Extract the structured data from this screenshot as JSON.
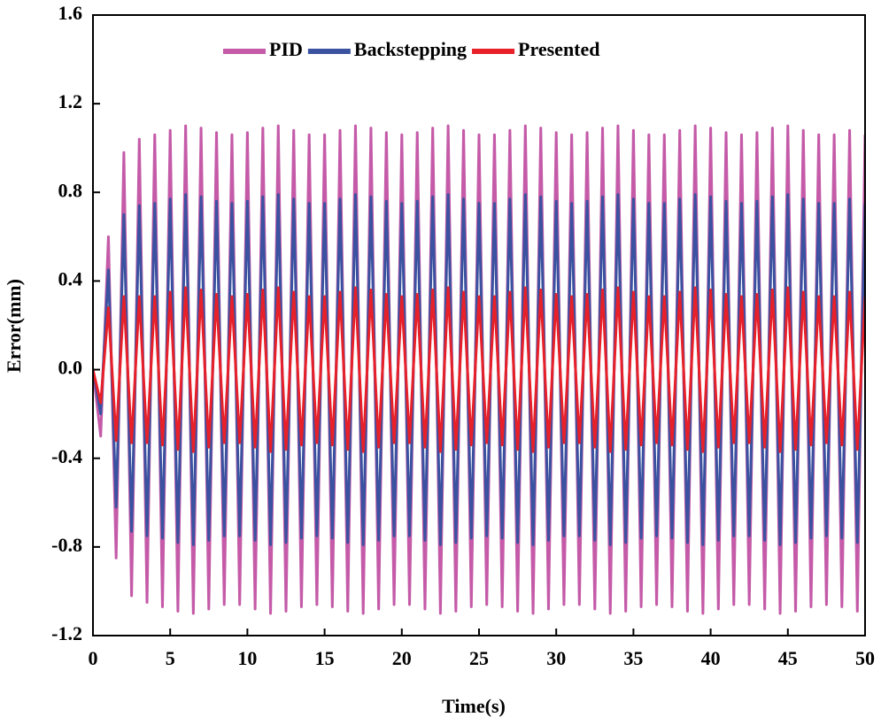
{
  "chart_data": {
    "type": "line",
    "xlabel": "Time(s)",
    "ylabel": "Error(mm)",
    "xlim": [
      0,
      50
    ],
    "ylim": [
      -1.2,
      1.6
    ],
    "xticks": [
      0,
      5,
      10,
      15,
      20,
      25,
      30,
      35,
      40,
      45,
      50
    ],
    "yticks": [
      -1.2,
      -0.8,
      -0.4,
      {
        "value": 0,
        "label": "0.0"
      },
      0.4,
      0.8,
      1.2,
      1.6
    ],
    "legend": "top",
    "x": [
      0,
      0.5,
      1,
      1.5,
      2,
      2.5,
      3,
      3.5,
      4,
      4.5,
      5,
      5.5,
      6,
      6.5,
      7,
      7.5,
      8,
      8.5,
      9,
      9.5,
      10,
      10.5,
      11,
      11.5,
      12,
      12.5,
      13,
      13.5,
      14,
      14.5,
      15,
      15.5,
      16,
      16.5,
      17,
      17.5,
      18,
      18.5,
      19,
      19.5,
      20,
      20.5,
      21,
      21.5,
      22,
      22.5,
      23,
      23.5,
      24,
      24.5,
      25,
      25.5,
      26,
      26.5,
      27,
      27.5,
      28,
      28.5,
      29,
      29.5,
      30,
      30.5,
      31,
      31.5,
      32,
      32.5,
      33,
      33.5,
      34,
      34.5,
      35,
      35.5,
      36,
      36.5,
      37,
      37.5,
      38,
      38.5,
      39,
      39.5,
      40,
      40.5,
      41,
      41.5,
      42,
      42.5,
      43,
      43.5,
      44,
      44.5,
      45,
      45.5,
      46,
      46.5,
      47,
      47.5,
      48,
      48.5,
      49,
      49.5,
      50
    ],
    "series": [
      {
        "name": "PID",
        "color": "#c45aa8",
        "values": [
          0,
          -0.3,
          0.6,
          -0.85,
          0.98,
          -1.02,
          1.04,
          -1.05,
          1.06,
          -1.07,
          1.08,
          -1.09,
          1.1,
          -1.1,
          1.09,
          -1.08,
          1.07,
          -1.06,
          1.06,
          -1.06,
          1.07,
          -1.08,
          1.09,
          -1.1,
          1.1,
          -1.09,
          1.08,
          -1.07,
          1.06,
          -1.06,
          1.06,
          -1.07,
          1.08,
          -1.09,
          1.1,
          -1.1,
          1.09,
          -1.08,
          1.07,
          -1.06,
          1.06,
          -1.06,
          1.07,
          -1.08,
          1.09,
          -1.1,
          1.1,
          -1.09,
          1.08,
          -1.07,
          1.06,
          -1.06,
          1.06,
          -1.07,
          1.08,
          -1.09,
          1.1,
          -1.1,
          1.09,
          -1.08,
          1.07,
          -1.06,
          1.06,
          -1.06,
          1.07,
          -1.08,
          1.09,
          -1.1,
          1.1,
          -1.09,
          1.08,
          -1.07,
          1.06,
          -1.06,
          1.06,
          -1.07,
          1.08,
          -1.09,
          1.1,
          -1.1,
          1.09,
          -1.08,
          1.07,
          -1.06,
          1.06,
          -1.06,
          1.07,
          -1.08,
          1.09,
          -1.1,
          1.1,
          -1.09,
          1.08,
          -1.07,
          1.06,
          -1.06,
          1.06,
          -1.07,
          1.08,
          -1.09,
          1.06
        ]
      },
      {
        "name": "Backstepping",
        "color": "#3a52a0",
        "values": [
          0,
          -0.2,
          0.45,
          -0.62,
          0.7,
          -0.73,
          0.74,
          -0.75,
          0.75,
          -0.76,
          0.77,
          -0.78,
          0.79,
          -0.79,
          0.78,
          -0.77,
          0.76,
          -0.75,
          0.75,
          -0.75,
          0.76,
          -0.77,
          0.78,
          -0.79,
          0.79,
          -0.78,
          0.77,
          -0.76,
          0.75,
          -0.75,
          0.75,
          -0.76,
          0.77,
          -0.78,
          0.79,
          -0.79,
          0.78,
          -0.77,
          0.76,
          -0.75,
          0.75,
          -0.75,
          0.76,
          -0.77,
          0.78,
          -0.79,
          0.79,
          -0.78,
          0.77,
          -0.76,
          0.75,
          -0.75,
          0.75,
          -0.76,
          0.77,
          -0.78,
          0.79,
          -0.79,
          0.78,
          -0.77,
          0.76,
          -0.75,
          0.75,
          -0.75,
          0.76,
          -0.77,
          0.78,
          -0.79,
          0.79,
          -0.78,
          0.77,
          -0.76,
          0.75,
          -0.75,
          0.75,
          -0.76,
          0.77,
          -0.78,
          0.79,
          -0.79,
          0.78,
          -0.77,
          0.76,
          -0.75,
          0.75,
          -0.75,
          0.76,
          -0.77,
          0.78,
          -0.79,
          0.79,
          -0.78,
          0.77,
          -0.76,
          0.75,
          -0.75,
          0.75,
          -0.76,
          0.77,
          -0.78,
          0.75
        ]
      },
      {
        "name": "Presented",
        "color": "#e8202a",
        "values": [
          0,
          -0.15,
          0.28,
          -0.32,
          0.33,
          -0.33,
          0.33,
          -0.33,
          0.33,
          -0.34,
          0.35,
          -0.36,
          0.37,
          -0.37,
          0.36,
          -0.35,
          0.34,
          -0.33,
          0.33,
          -0.33,
          0.34,
          -0.35,
          0.36,
          -0.37,
          0.37,
          -0.36,
          0.35,
          -0.34,
          0.33,
          -0.33,
          0.33,
          -0.34,
          0.35,
          -0.36,
          0.37,
          -0.37,
          0.36,
          -0.35,
          0.34,
          -0.33,
          0.33,
          -0.33,
          0.34,
          -0.35,
          0.36,
          -0.37,
          0.37,
          -0.36,
          0.35,
          -0.34,
          0.33,
          -0.33,
          0.33,
          -0.34,
          0.35,
          -0.36,
          0.37,
          -0.37,
          0.36,
          -0.35,
          0.34,
          -0.33,
          0.33,
          -0.33,
          0.34,
          -0.35,
          0.36,
          -0.37,
          0.37,
          -0.36,
          0.35,
          -0.34,
          0.33,
          -0.33,
          0.33,
          -0.34,
          0.35,
          -0.36,
          0.37,
          -0.37,
          0.36,
          -0.35,
          0.34,
          -0.33,
          0.33,
          -0.33,
          0.34,
          -0.35,
          0.36,
          -0.37,
          0.37,
          -0.36,
          0.35,
          -0.34,
          0.33,
          -0.33,
          0.33,
          -0.34,
          0.35,
          -0.36,
          0.33
        ]
      }
    ]
  }
}
